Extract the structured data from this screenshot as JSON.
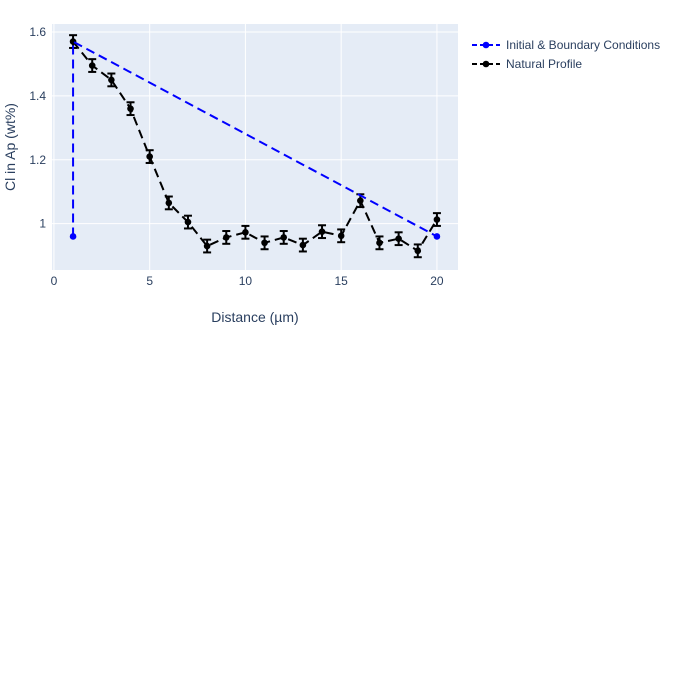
{
  "chart_data": {
    "type": "line",
    "xlabel": "Distance (µm)",
    "ylabel": "Cl in Ap (wt%)",
    "xlim": [
      -0.1,
      21.1
    ],
    "ylim": [
      0.855,
      1.625
    ],
    "xticks": [
      0,
      5,
      10,
      15,
      20
    ],
    "yticks": [
      1,
      1.2,
      1.4,
      1.6
    ],
    "ytick_labels": [
      "1",
      "1.2",
      "1.4",
      "1.6"
    ],
    "grid": true,
    "legend_position": "top-right, outside plot",
    "plot_bgcolor": "#e5ecf6",
    "series": [
      {
        "name": "Initial & Boundary Conditions",
        "color": "#0000ff",
        "dash": "dash",
        "markers": [
          0,
          2
        ],
        "x": [
          1,
          1,
          20,
          20
        ],
        "y": [
          0.96,
          1.57,
          0.96,
          0.96
        ]
      },
      {
        "name": "Natural Profile",
        "color": "#000000",
        "dash": "dash",
        "x": [
          1,
          2,
          3,
          4,
          5,
          6,
          7,
          8,
          9,
          10,
          11,
          12,
          13,
          14,
          15,
          16,
          17,
          18,
          19,
          20
        ],
        "y": [
          1.57,
          1.495,
          1.45,
          1.36,
          1.21,
          1.065,
          1.005,
          0.93,
          0.957,
          0.973,
          0.94,
          0.957,
          0.933,
          0.975,
          0.962,
          1.072,
          0.94,
          0.953,
          0.915,
          1.013
        ],
        "error": [
          0.02,
          0.02,
          0.02,
          0.02,
          0.02,
          0.02,
          0.02,
          0.02,
          0.02,
          0.02,
          0.02,
          0.02,
          0.02,
          0.02,
          0.02,
          0.02,
          0.02,
          0.02,
          0.02,
          0.02
        ]
      }
    ]
  }
}
